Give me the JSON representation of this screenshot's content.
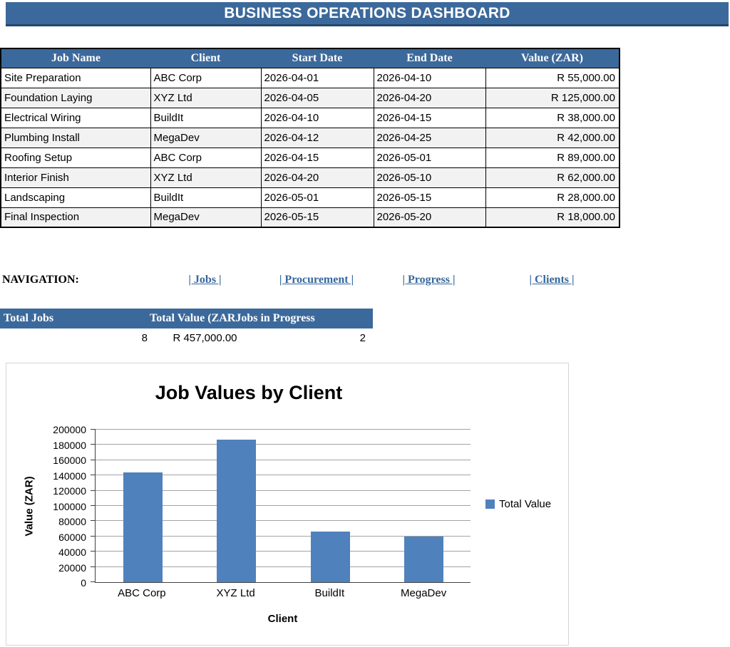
{
  "title_bar": {
    "text": "BUSINESS OPERATIONS DASHBOARD"
  },
  "colors": {
    "header_blue": "#3C699B",
    "bar_blue": "#4F81BD",
    "link_blue": "#36689E",
    "alt_row_gray": "#F2F2F2"
  },
  "jobs_table": {
    "columns": [
      "Job Name",
      "Client",
      "Start Date",
      "End Date",
      "Value (ZAR)"
    ],
    "rows": [
      [
        "Site Preparation",
        "ABC Corp",
        "2026-04-01",
        "2026-04-10",
        "R 55,000.00"
      ],
      [
        "Foundation Laying",
        "XYZ Ltd",
        "2026-04-05",
        "2026-04-20",
        "R 125,000.00"
      ],
      [
        "Electrical Wiring",
        "BuildIt",
        "2026-04-10",
        "2026-04-15",
        "R 38,000.00"
      ],
      [
        "Plumbing Install",
        "MegaDev",
        "2026-04-12",
        "2026-04-25",
        "R 42,000.00"
      ],
      [
        "Roofing Setup",
        "ABC Corp",
        "2026-04-15",
        "2026-05-01",
        "R 89,000.00"
      ],
      [
        "Interior Finish",
        "XYZ Ltd",
        "2026-04-20",
        "2026-05-10",
        "R 62,000.00"
      ],
      [
        "Landscaping",
        "BuildIt",
        "2026-05-01",
        "2026-05-15",
        "R 28,000.00"
      ],
      [
        "Final Inspection",
        "MegaDev",
        "2026-05-15",
        "2026-05-20",
        "R 18,000.00"
      ]
    ]
  },
  "navigation": {
    "label": "NAVIGATION:",
    "links": [
      "| Jobs |",
      "| Procurement |",
      "| Progress |",
      "| Clients |"
    ]
  },
  "summary": {
    "headers": [
      "Total Jobs",
      "Total Value (ZAR",
      "Jobs in Progress"
    ],
    "values": [
      "8",
      "R 457,000.00",
      "2"
    ]
  },
  "chart_data": {
    "type": "bar",
    "title": "Job Values by Client",
    "categories": [
      "ABC Corp",
      "XYZ Ltd",
      "BuildIt",
      "MegaDev"
    ],
    "series": [
      {
        "name": "Total Value",
        "values": [
          144000,
          187000,
          66000,
          60000
        ]
      }
    ],
    "xlabel": "Client",
    "ylabel": "Value (ZAR)",
    "ylim": [
      0,
      200000
    ],
    "ytick_step": 20000,
    "grid": true,
    "legend_position": "right",
    "bar_color": "#4F81BD"
  }
}
